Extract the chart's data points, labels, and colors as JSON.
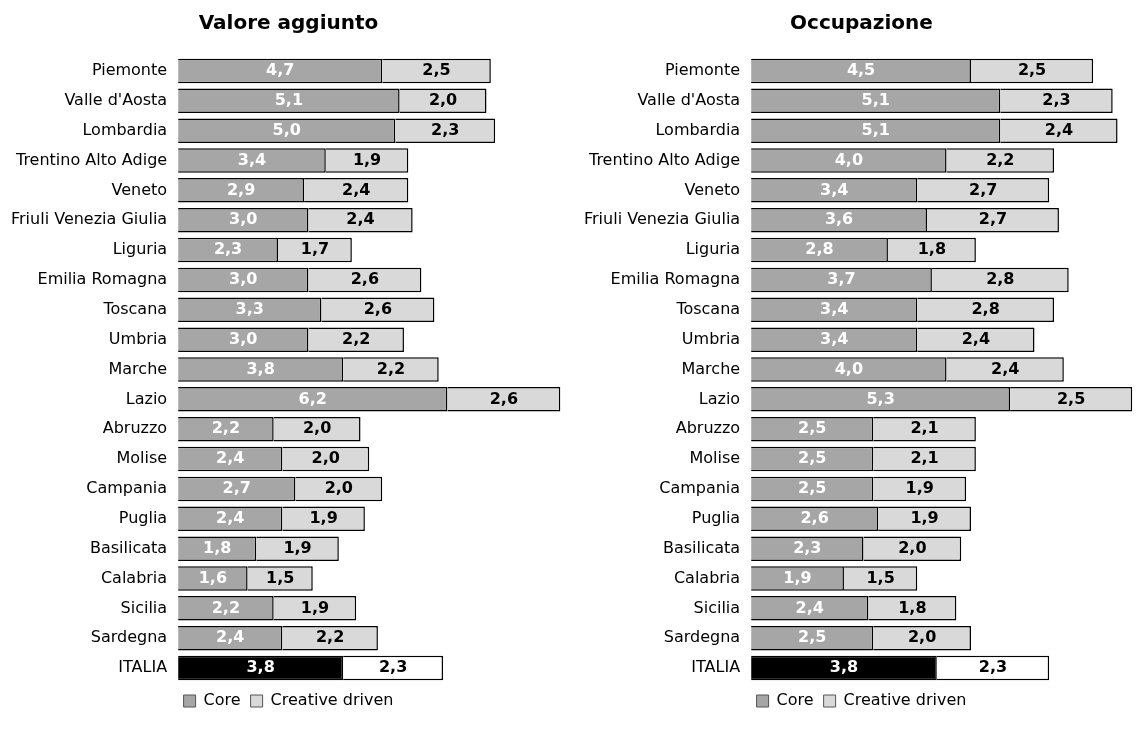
{
  "chart_data": [
    {
      "type": "bar",
      "orientation": "horizontal",
      "stacked": true,
      "title": "Valore aggiunto",
      "legend": "bottom",
      "tick_labels": "y",
      "categories": [
        "Piemonte",
        "Valle d'Aosta",
        "Lombardia",
        "Trentino Alto Adige",
        "Veneto",
        "Friuli Venezia Giulia",
        "Liguria",
        "Emilia Romagna",
        "Toscana",
        "Umbria",
        "Marche",
        "Lazio",
        "Abruzzo",
        "Molise",
        "Campania",
        "Puglia",
        "Basilicata",
        "Calabria",
        "Sicilia",
        "Sardegna",
        "ITALIA"
      ],
      "series": [
        {
          "name": "Core",
          "color": "#a6a6a6",
          "colors": [
            "#a6a6a6",
            "#a6a6a6",
            "#a6a6a6",
            "#a6a6a6",
            "#a6a6a6",
            "#a6a6a6",
            "#a6a6a6",
            "#a6a6a6",
            "#a6a6a6",
            "#a6a6a6",
            "#a6a6a6",
            "#a6a6a6",
            "#a6a6a6",
            "#a6a6a6",
            "#a6a6a6",
            "#a6a6a6",
            "#a6a6a6",
            "#a6a6a6",
            "#a6a6a6",
            "#a6a6a6",
            "#000000"
          ],
          "values": [
            4.7,
            5.1,
            5.0,
            3.4,
            2.9,
            3.0,
            2.3,
            3.0,
            3.3,
            3.0,
            3.8,
            6.2,
            2.2,
            2.4,
            2.7,
            2.4,
            1.8,
            1.6,
            2.2,
            2.4,
            3.8
          ],
          "value_labels": [
            "4,7",
            "5,1",
            "5,0",
            "3,4",
            "2,9",
            "3,0",
            "2,3",
            "3,0",
            "3,3",
            "3,0",
            "3,8",
            "6,2",
            "2,2",
            "2,4",
            "2,7",
            "2,4",
            "1,8",
            "1,6",
            "2,2",
            "2,4",
            "3,8"
          ]
        },
        {
          "name": "Creative driven",
          "color": "#d9d9d9",
          "colors": [
            "#d9d9d9",
            "#d9d9d9",
            "#d9d9d9",
            "#d9d9d9",
            "#d9d9d9",
            "#d9d9d9",
            "#d9d9d9",
            "#d9d9d9",
            "#d9d9d9",
            "#d9d9d9",
            "#d9d9d9",
            "#d9d9d9",
            "#d9d9d9",
            "#d9d9d9",
            "#d9d9d9",
            "#d9d9d9",
            "#d9d9d9",
            "#d9d9d9",
            "#d9d9d9",
            "#d9d9d9",
            "#ffffff"
          ],
          "values": [
            2.5,
            2.0,
            2.3,
            1.9,
            2.4,
            2.4,
            1.7,
            2.6,
            2.6,
            2.2,
            2.2,
            2.6,
            2.0,
            2.0,
            2.0,
            1.9,
            1.9,
            1.5,
            1.9,
            2.2,
            2.3
          ],
          "value_labels": [
            "2,5",
            "2,0",
            "2,3",
            "1,9",
            "2,4",
            "2,4",
            "1,7",
            "2,6",
            "2,6",
            "2,2",
            "2,2",
            "2,6",
            "2,0",
            "2,0",
            "2,0",
            "1,9",
            "1,9",
            "1,5",
            "1,9",
            "2,2",
            "2,3"
          ]
        }
      ]
    },
    {
      "type": "bar",
      "orientation": "horizontal",
      "stacked": true,
      "title": "Occupazione",
      "legend": "bottom",
      "tick_labels": "y",
      "categories": [
        "Piemonte",
        "Valle d'Aosta",
        "Lombardia",
        "Trentino Alto Adige",
        "Veneto",
        "Friuli Venezia Giulia",
        "Liguria",
        "Emilia Romagna",
        "Toscana",
        "Umbria",
        "Marche",
        "Lazio",
        "Abruzzo",
        "Molise",
        "Campania",
        "Puglia",
        "Basilicata",
        "Calabria",
        "Sicilia",
        "Sardegna",
        "ITALIA"
      ],
      "series": [
        {
          "name": "Core",
          "color": "#a6a6a6",
          "colors": [
            "#a6a6a6",
            "#a6a6a6",
            "#a6a6a6",
            "#a6a6a6",
            "#a6a6a6",
            "#a6a6a6",
            "#a6a6a6",
            "#a6a6a6",
            "#a6a6a6",
            "#a6a6a6",
            "#a6a6a6",
            "#a6a6a6",
            "#a6a6a6",
            "#a6a6a6",
            "#a6a6a6",
            "#a6a6a6",
            "#a6a6a6",
            "#a6a6a6",
            "#a6a6a6",
            "#a6a6a6",
            "#000000"
          ],
          "values": [
            4.5,
            5.1,
            5.1,
            4.0,
            3.4,
            3.6,
            2.8,
            3.7,
            3.4,
            3.4,
            4.0,
            5.3,
            2.5,
            2.5,
            2.5,
            2.6,
            2.3,
            1.9,
            2.4,
            2.5,
            3.8
          ],
          "value_labels": [
            "4,5",
            "5,1",
            "5,1",
            "4,0",
            "3,4",
            "3,6",
            "2,8",
            "3,7",
            "3,4",
            "3,4",
            "4,0",
            "5,3",
            "2,5",
            "2,5",
            "2,5",
            "2,6",
            "2,3",
            "1,9",
            "2,4",
            "2,5",
            "3,8"
          ]
        },
        {
          "name": "Creative driven",
          "color": "#d9d9d9",
          "colors": [
            "#d9d9d9",
            "#d9d9d9",
            "#d9d9d9",
            "#d9d9d9",
            "#d9d9d9",
            "#d9d9d9",
            "#d9d9d9",
            "#d9d9d9",
            "#d9d9d9",
            "#d9d9d9",
            "#d9d9d9",
            "#d9d9d9",
            "#d9d9d9",
            "#d9d9d9",
            "#d9d9d9",
            "#d9d9d9",
            "#d9d9d9",
            "#d9d9d9",
            "#d9d9d9",
            "#d9d9d9",
            "#ffffff"
          ],
          "values": [
            2.5,
            2.3,
            2.4,
            2.2,
            2.7,
            2.7,
            1.8,
            2.8,
            2.8,
            2.4,
            2.4,
            2.5,
            2.1,
            2.1,
            1.9,
            1.9,
            2.0,
            1.5,
            1.8,
            2.0,
            2.3
          ],
          "value_labels": [
            "2,5",
            "2,3",
            "2,4",
            "2,2",
            "2,7",
            "2,7",
            "1,8",
            "2,8",
            "2,8",
            "2,4",
            "2,4",
            "2,5",
            "2,1",
            "2,1",
            "1,9",
            "1,9",
            "2,0",
            "1,5",
            "1,8",
            "2,0",
            "2,3"
          ]
        }
      ]
    }
  ]
}
